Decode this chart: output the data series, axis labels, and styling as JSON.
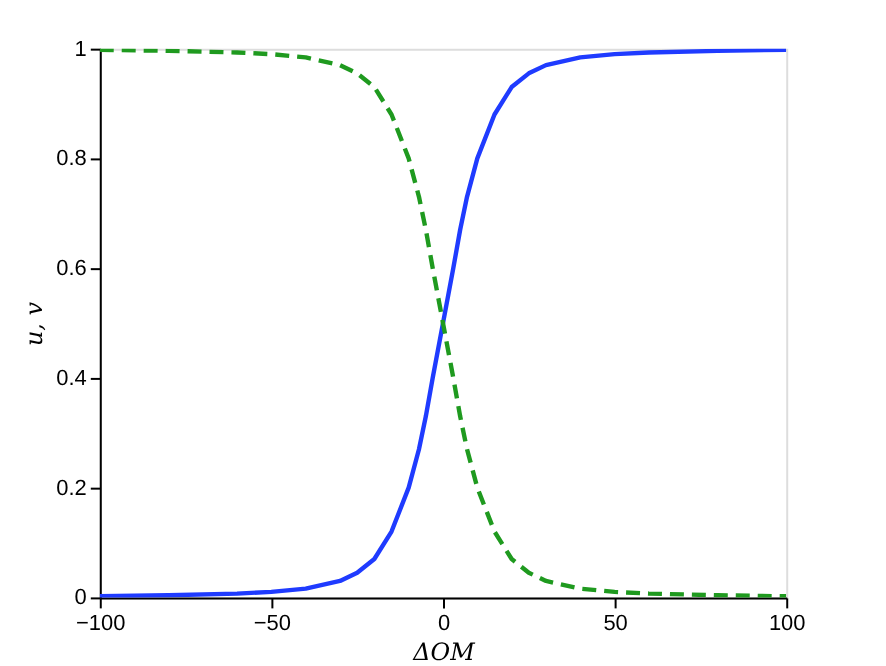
{
  "chart_data": {
    "type": "line",
    "xlabel": "ΔOM",
    "ylabel": "u, v",
    "x": [
      -100,
      -80,
      -60,
      -50,
      -40,
      -30,
      -25,
      -20,
      -15,
      -10,
      -7,
      -5,
      -3,
      0,
      3,
      5,
      7,
      10,
      15,
      20,
      25,
      30,
      40,
      50,
      60,
      80,
      100
    ],
    "series": [
      {
        "color": "#1f3bff",
        "line_style": "solid",
        "values": [
          0.002,
          0.004,
          0.007,
          0.01,
          0.016,
          0.03,
          0.045,
          0.07,
          0.12,
          0.2,
          0.27,
          0.33,
          0.4,
          0.5,
          0.6,
          0.67,
          0.73,
          0.8,
          0.88,
          0.93,
          0.955,
          0.97,
          0.984,
          0.99,
          0.993,
          0.996,
          0.998
        ]
      },
      {
        "color": "#1f9a1f",
        "line_style": "dashed",
        "values": [
          0.998,
          0.996,
          0.993,
          0.99,
          0.984,
          0.97,
          0.955,
          0.93,
          0.88,
          0.8,
          0.73,
          0.67,
          0.6,
          0.5,
          0.4,
          0.33,
          0.27,
          0.2,
          0.12,
          0.07,
          0.045,
          0.03,
          0.016,
          0.01,
          0.007,
          0.004,
          0.002
        ]
      }
    ],
    "xlim": [
      -100,
      100
    ],
    "xticks": [
      -100,
      -50,
      0,
      50,
      100
    ],
    "ylim": [
      0,
      1
    ],
    "yticks": [
      0,
      0.2,
      0.4,
      0.6,
      0.8,
      1
    ],
    "grid": false,
    "marker": "none"
  }
}
